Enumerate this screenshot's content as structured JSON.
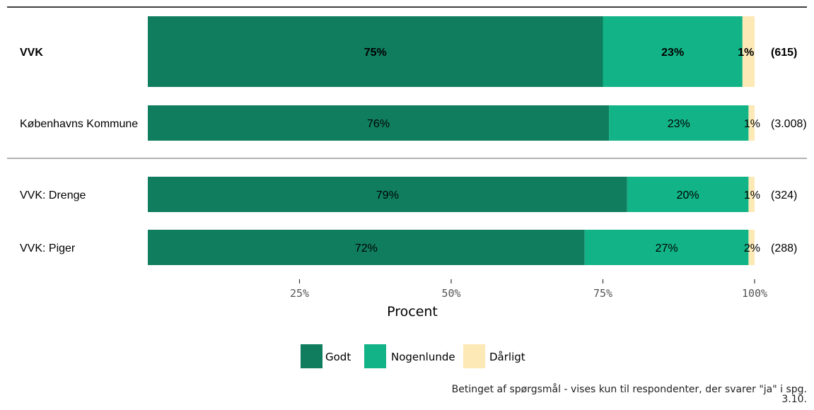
{
  "chart_data": {
    "type": "bar",
    "orientation": "horizontal",
    "stacked": true,
    "xlabel": "Procent",
    "xlim": [
      0,
      100
    ],
    "x_ticks": [
      25,
      50,
      75,
      100
    ],
    "x_tick_labels": [
      "25%",
      "50%",
      "75%",
      "100%"
    ],
    "categories": [
      "VVK",
      "Københavns Kommune",
      "VVK: Drenge",
      "VVK: Piger"
    ],
    "n_labels": [
      "(615)",
      "(3.008)",
      "(324)",
      "(288)"
    ],
    "bold_categories": [
      "VVK"
    ],
    "series": [
      {
        "name": "Godt",
        "color": "#0f7d5e",
        "values": [
          75,
          76,
          79,
          72
        ],
        "labels": [
          "75%",
          "76%",
          "79%",
          "72%"
        ]
      },
      {
        "name": "Nogenlunde",
        "color": "#12b386",
        "values": [
          23,
          23,
          20,
          27
        ],
        "labels": [
          "23%",
          "23%",
          "20%",
          "27%"
        ]
      },
      {
        "name": "Dårligt",
        "color": "#fde9b6",
        "values": [
          1,
          1,
          1,
          2
        ],
        "labels": [
          "1%",
          "1%",
          "1%",
          "2%"
        ]
      }
    ],
    "legend_position": "bottom",
    "grid": false
  },
  "footnote": {
    "line1": "Betinget af spørgsmål - vises kun til respondenter, der svarer \"ja\" i spg.",
    "line2": "3.10."
  }
}
